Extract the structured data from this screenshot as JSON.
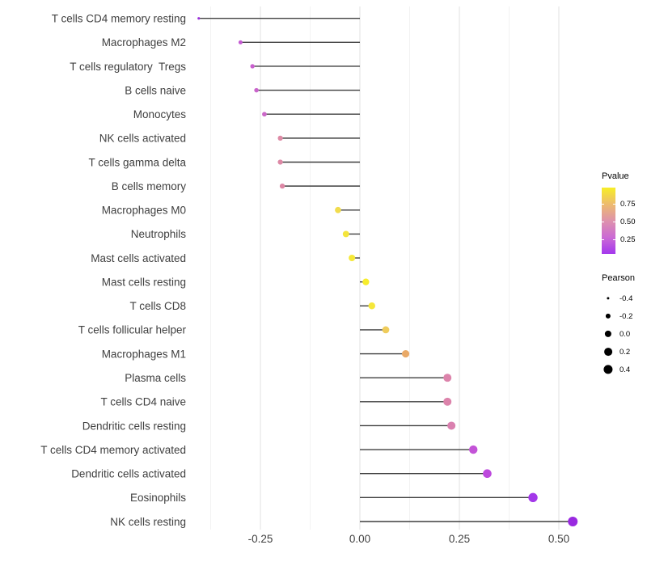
{
  "figure": {
    "background": "#ffffff"
  },
  "chart_data": {
    "type": "lollipop",
    "orientation": "horizontal",
    "title": "",
    "xlabel": "",
    "ylabel": "",
    "x_range": [
      -0.42,
      0.575
    ],
    "x_ticks": [
      {
        "value": -0.25,
        "label": "-0.25"
      },
      {
        "value": 0.0,
        "label": "0.00"
      },
      {
        "value": 0.25,
        "label": "0.25"
      },
      {
        "value": 0.5,
        "label": "0.50"
      }
    ],
    "gridlines": {
      "major": [
        -0.25,
        0.0,
        0.25,
        0.5
      ],
      "minor": [
        -0.375,
        -0.125,
        0.125,
        0.375
      ]
    },
    "color_encodes": "Pvalue",
    "size_encodes": "Pearson",
    "points": [
      {
        "label": "T cells CD4 memory resting",
        "pearson": -0.405,
        "pvalue_approx": 0.05,
        "color": "#9B30DB"
      },
      {
        "label": "Macrophages M2",
        "pearson": -0.3,
        "pvalue_approx": 0.21,
        "color": "#C45AD2"
      },
      {
        "label": "T cells regulatory  Tregs",
        "pearson": -0.27,
        "pvalue_approx": 0.23,
        "color": "#C960CE"
      },
      {
        "label": "B cells naive",
        "pearson": -0.26,
        "pvalue_approx": 0.24,
        "color": "#C964CB"
      },
      {
        "label": "Monocytes",
        "pearson": -0.24,
        "pvalue_approx": 0.25,
        "color": "#CB68C8"
      },
      {
        "label": "NK cells activated",
        "pearson": -0.2,
        "pvalue_approx": 0.42,
        "color": "#DE8BA6"
      },
      {
        "label": "T cells gamma delta",
        "pearson": -0.2,
        "pvalue_approx": 0.42,
        "color": "#DD89A6"
      },
      {
        "label": "B cells memory",
        "pearson": -0.195,
        "pvalue_approx": 0.41,
        "color": "#DD87A5"
      },
      {
        "label": "Macrophages M0",
        "pearson": -0.055,
        "pvalue_approx": 0.82,
        "color": "#F1DC4E"
      },
      {
        "label": "Neutrophils",
        "pearson": -0.035,
        "pvalue_approx": 0.88,
        "color": "#F4E53C"
      },
      {
        "label": "Mast cells activated",
        "pearson": -0.02,
        "pvalue_approx": 0.9,
        "color": "#F5E838"
      },
      {
        "label": "Mast cells resting",
        "pearson": 0.015,
        "pvalue_approx": 0.96,
        "color": "#F7ED2C"
      },
      {
        "label": "T cells CD8",
        "pearson": 0.03,
        "pvalue_approx": 0.9,
        "color": "#F5E73B"
      },
      {
        "label": "T cells follicular helper",
        "pearson": 0.065,
        "pvalue_approx": 0.74,
        "color": "#EFCC5B"
      },
      {
        "label": "Macrophages M1",
        "pearson": 0.115,
        "pvalue_approx": 0.61,
        "color": "#E9A967"
      },
      {
        "label": "Plasma cells",
        "pearson": 0.22,
        "pvalue_approx": 0.4,
        "color": "#DC83AB"
      },
      {
        "label": "T cells CD4 naive",
        "pearson": 0.22,
        "pvalue_approx": 0.4,
        "color": "#DC83AB"
      },
      {
        "label": "Dendritic cells resting",
        "pearson": 0.23,
        "pvalue_approx": 0.38,
        "color": "#DA80AF"
      },
      {
        "label": "T cells CD4 memory activated",
        "pearson": 0.285,
        "pvalue_approx": 0.19,
        "color": "#C353D7"
      },
      {
        "label": "Dendritic cells activated",
        "pearson": 0.32,
        "pvalue_approx": 0.15,
        "color": "#BD49DD"
      },
      {
        "label": "Eosinophils",
        "pearson": 0.435,
        "pvalue_approx": 0.07,
        "color": "#A338E9"
      },
      {
        "label": "NK cells resting",
        "pearson": 0.535,
        "pvalue_approx": 0.02,
        "color": "#9929E0"
      }
    ]
  },
  "legend": {
    "pvalue": {
      "title": "Pvalue",
      "ticks": [
        {
          "value": 0.75,
          "label": "0.75"
        },
        {
          "value": 0.5,
          "label": "0.50"
        },
        {
          "value": 0.25,
          "label": "0.25"
        }
      ],
      "bar_range": [
        0.97,
        0.05
      ],
      "gradient_top_to_bottom": [
        "#F7EE27",
        "#EDBB6E",
        "#DE92AC",
        "#CB6BD4",
        "#A437ED"
      ]
    },
    "pearson": {
      "title": "Pearson",
      "entries": [
        {
          "value": -0.4,
          "label": "-0.4"
        },
        {
          "value": -0.2,
          "label": "-0.2"
        },
        {
          "value": 0.0,
          "label": "0.0"
        },
        {
          "value": 0.2,
          "label": "0.2"
        },
        {
          "value": 0.4,
          "label": "0.4"
        }
      ]
    }
  },
  "style": {
    "stem_color": "#3F3F3F",
    "text_color": "#404040",
    "gridline_major_color": "#E3E3E3",
    "gridline_minor_color": "#EFEFEF"
  }
}
